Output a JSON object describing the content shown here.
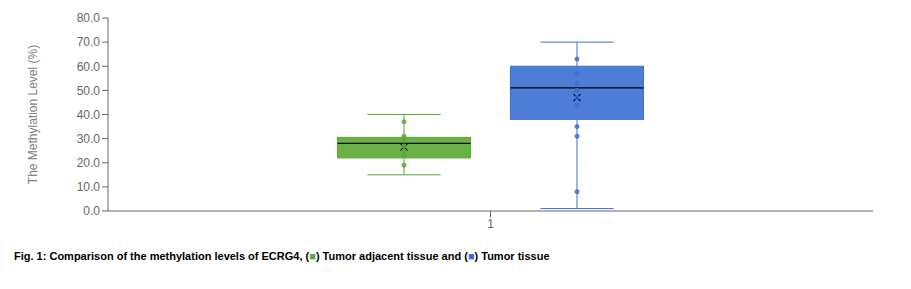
{
  "chart_data": {
    "type": "box",
    "categories": [
      "1"
    ],
    "ylabel": "The Methylation Level  (%)",
    "ylim": [
      0.0,
      80.0
    ],
    "yticks": [
      {
        "value": 0,
        "label": "0.0"
      },
      {
        "value": 10,
        "label": "10.0"
      },
      {
        "value": 20,
        "label": "20.0"
      },
      {
        "value": 30,
        "label": "30.0"
      },
      {
        "value": 40,
        "label": "40.0"
      },
      {
        "value": 50,
        "label": "50.0"
      },
      {
        "value": 60,
        "label": "60.0"
      },
      {
        "value": 70,
        "label": "70.0"
      },
      {
        "value": 80,
        "label": "80.0"
      }
    ],
    "grid": false,
    "series": [
      {
        "color": "#5aaa32",
        "q1": 22.0,
        "median": 28.0,
        "q3": 30.5,
        "whisker_low": 15.0,
        "whisker_high": 40.0,
        "mean": 26.5,
        "fliers": [
          37.0,
          19.0,
          31.0,
          30.0,
          29.5,
          27.0,
          25.0,
          23.0
        ]
      },
      {
        "color": "#3B6FD4",
        "q1": 38.0,
        "median": 51.0,
        "q3": 60.0,
        "whisker_low": 1.0,
        "whisker_high": 70.0,
        "mean": 47.0,
        "fliers": [
          8.0,
          35.0,
          31.0,
          63.0,
          57.0,
          53.0,
          50.0,
          47.0,
          44.0
        ]
      }
    ],
    "caption": [
      {
        "text": "Fig. 1: Comparison of the methylation levels of ECRG4, (",
        "color": "black"
      },
      {
        "text": "■",
        "color": "#5aaa32"
      },
      {
        "text": ") Tumor adjacent tissue and (",
        "color": "black"
      },
      {
        "text": "■",
        "color": "#3B6FD4"
      },
      {
        "text": ") Tumor tissue",
        "color": "black"
      }
    ]
  }
}
